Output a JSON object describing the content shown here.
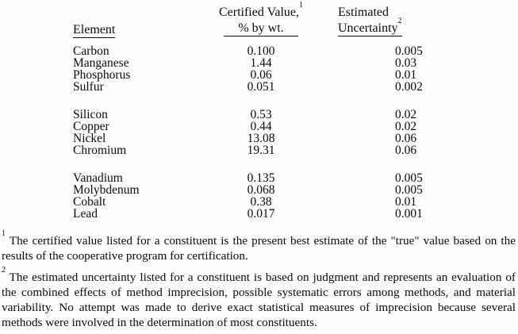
{
  "table": {
    "headers": {
      "element": "Element",
      "certified_title": "Certified Value,",
      "certified_footnote_ref": "1",
      "certified_subtitle": "% by wt.",
      "uncertainty_title": "Estimated",
      "uncertainty_word": "Uncertainty",
      "uncertainty_footnote_ref": "2"
    },
    "groups": [
      {
        "rows": [
          {
            "element": "Carbon",
            "certified_value": "0.100",
            "estimated_uncertainty": "0.005"
          },
          {
            "element": "Manganese",
            "certified_value": "1.44",
            "estimated_uncertainty": "0.03"
          },
          {
            "element": "Phosphorus",
            "certified_value": "0.06",
            "estimated_uncertainty": "0.01"
          },
          {
            "element": "Sulfur",
            "certified_value": "0.051",
            "estimated_uncertainty": "0.002"
          }
        ]
      },
      {
        "rows": [
          {
            "element": "Silicon",
            "certified_value": "0.53",
            "estimated_uncertainty": "0.02"
          },
          {
            "element": "Copper",
            "certified_value": "0.44",
            "estimated_uncertainty": "0.02"
          },
          {
            "element": "Nickel",
            "certified_value": "13.08",
            "estimated_uncertainty": "0.06"
          },
          {
            "element": "Chromium",
            "certified_value": "19.31",
            "estimated_uncertainty": "0.06"
          }
        ]
      },
      {
        "rows": [
          {
            "element": "Vanadium",
            "certified_value": "0.135",
            "estimated_uncertainty": "0.005"
          },
          {
            "element": "Molybdenum",
            "certified_value": "0.068",
            "estimated_uncertainty": "0.005"
          },
          {
            "element": "Cobalt",
            "certified_value": "0.38",
            "estimated_uncertainty": "0.01"
          },
          {
            "element": "Lead",
            "certified_value": "0.017",
            "estimated_uncertainty": "0.001"
          }
        ]
      }
    ]
  },
  "footnotes": [
    {
      "marker": "1",
      "text": "The certified value listed for a constituent is the present best estimate of the \"true\" value based on the results of the cooperative program for certification."
    },
    {
      "marker": "2",
      "text": "The estimated uncertainty listed for a constituent is based on judgment and represents an evaluation of the combined effects of method imprecision, possible systematic errors among methods, and material variability. No attempt was made to derive exact statistical measures of imprecision because several methods were involved in the determination of most constituents."
    }
  ]
}
